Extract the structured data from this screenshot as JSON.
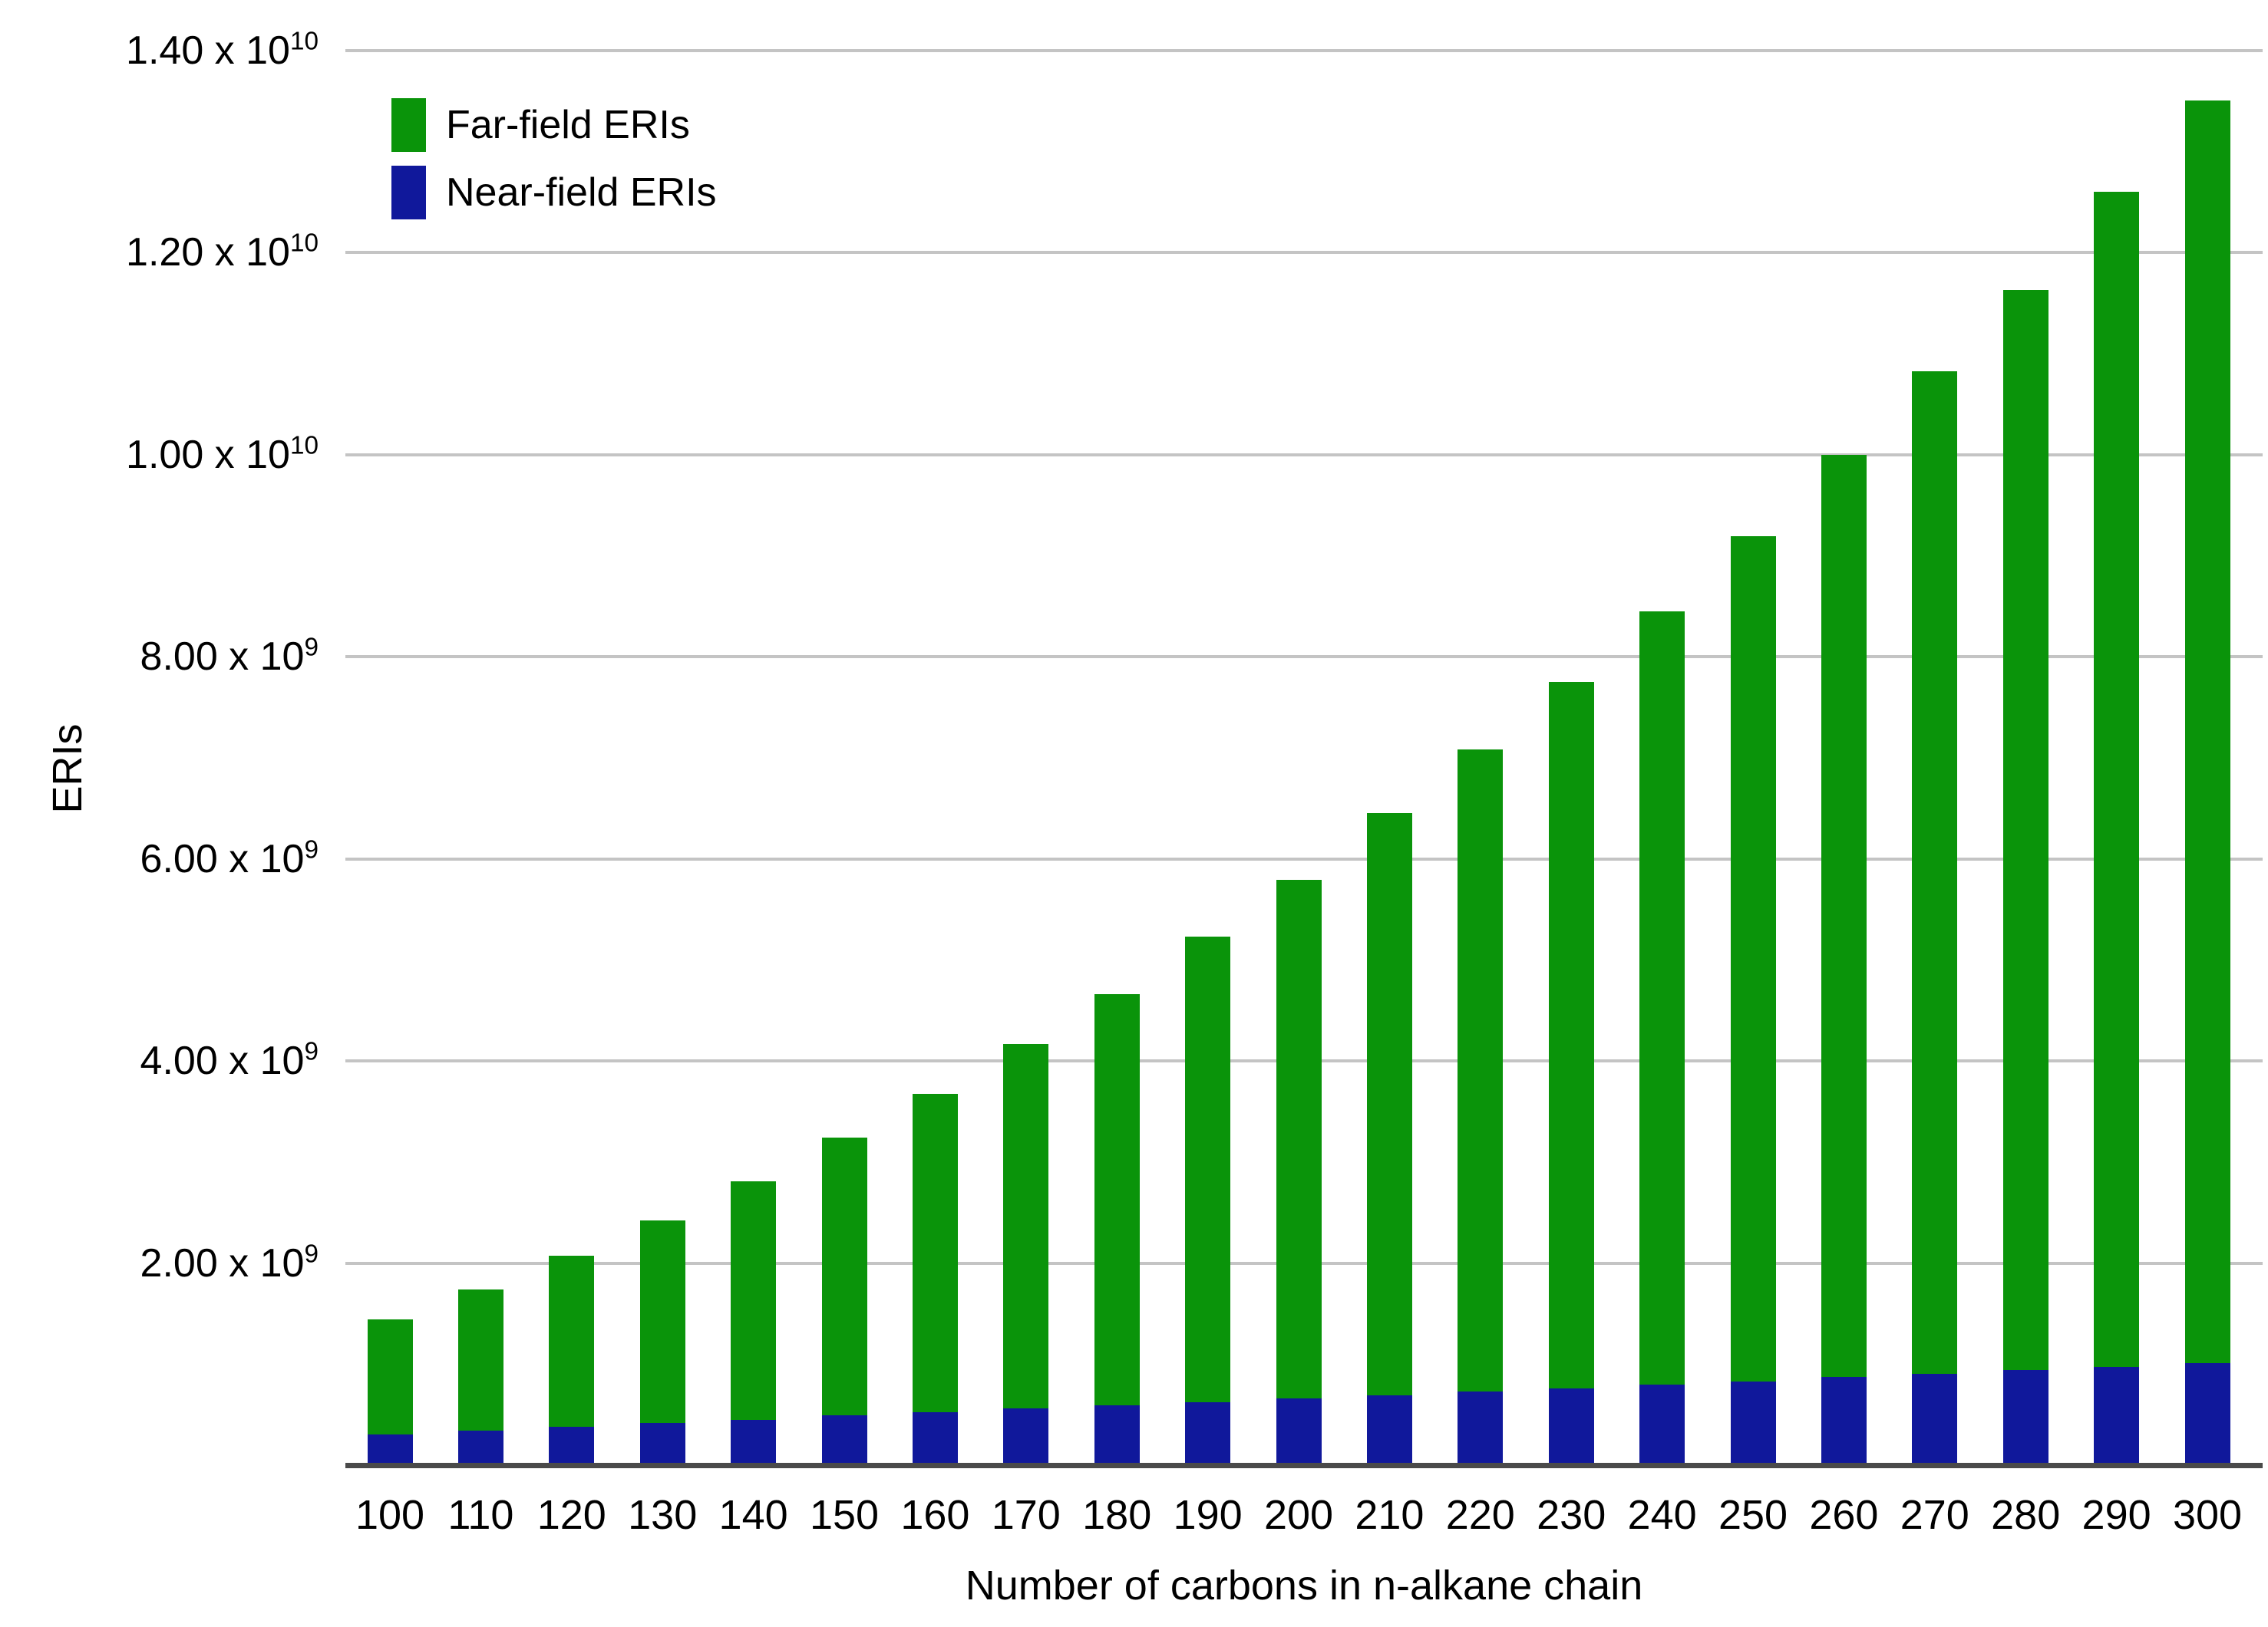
{
  "colors": {
    "background": "#ffffff",
    "grid": "#c4c4c4",
    "axis_line": "#4a4a4a",
    "text": "#000000",
    "far_field_green": "#0a940a",
    "near_field_blue": "#10189b"
  },
  "chart_data": {
    "type": "bar",
    "stacked": true,
    "title": "",
    "xlabel": "Number of carbons in n-alkane chain",
    "ylabel": "ERIs",
    "grid": true,
    "legend_position": "top-left",
    "ylim": [
      0,
      14000000000
    ],
    "categories": [
      "100",
      "110",
      "120",
      "130",
      "140",
      "150",
      "160",
      "170",
      "180",
      "190",
      "200",
      "210",
      "220",
      "230",
      "240",
      "250",
      "260",
      "270",
      "280",
      "290",
      "300"
    ],
    "series": [
      {
        "id": "far",
        "name": "Far-field ERIs",
        "color": "#0a940a",
        "values": [
          1140000000.0,
          1400000000.0,
          1690000000.0,
          2000000000.0,
          2360000000.0,
          2750000000.0,
          3150000000.0,
          3610000000.0,
          4070000000.0,
          4610000000.0,
          5130000000.0,
          5760000000.0,
          6350000000.0,
          6990000000.0,
          7650000000.0,
          8360000000.0,
          9130000000.0,
          9920000000.0,
          10690000000.0,
          11630000000.0,
          12490000000.0
        ]
      },
      {
        "id": "near",
        "name": "Near-field ERIs",
        "color": "#10189b",
        "values": [
          300000000.0,
          340000000.0,
          380000000.0,
          420000000.0,
          450000000.0,
          490000000.0,
          520000000.0,
          560000000.0,
          590000000.0,
          620000000.0,
          660000000.0,
          690000000.0,
          730000000.0,
          760000000.0,
          800000000.0,
          830000000.0,
          870000000.0,
          900000000.0,
          940000000.0,
          970000000.0,
          1010000000.0
        ]
      }
    ],
    "totals_approx": [
      1440000000.0,
      1740000000.0,
      2070000000.0,
      2420000000.0,
      2810000000.0,
      3240000000.0,
      3670000000.0,
      4170000000.0,
      4660000000.0,
      5230000000.0,
      5790000000.0,
      6450000000.0,
      7080000000.0,
      7750000000.0,
      8450000000.0,
      9190000000.0,
      10000000000.0,
      10820000000.0,
      11630000000.0,
      12600000000.0,
      13500000000.0
    ],
    "yticks": [
      {
        "value": 2000000000.0,
        "label": "2.00 x 10",
        "exponent": "9"
      },
      {
        "value": 4000000000.0,
        "label": "4.00 x 10",
        "exponent": "9"
      },
      {
        "value": 6000000000.0,
        "label": "6.00 x 10",
        "exponent": "9"
      },
      {
        "value": 8000000000.0,
        "label": "8.00 x 10",
        "exponent": "9"
      },
      {
        "value": 10000000000.0,
        "label": "1.00 x 10",
        "exponent": "10"
      },
      {
        "value": 12000000000.0,
        "label": "1.20 x 10",
        "exponent": "10"
      },
      {
        "value": 14000000000.0,
        "label": "1.40 x 10",
        "exponent": "10"
      }
    ]
  }
}
